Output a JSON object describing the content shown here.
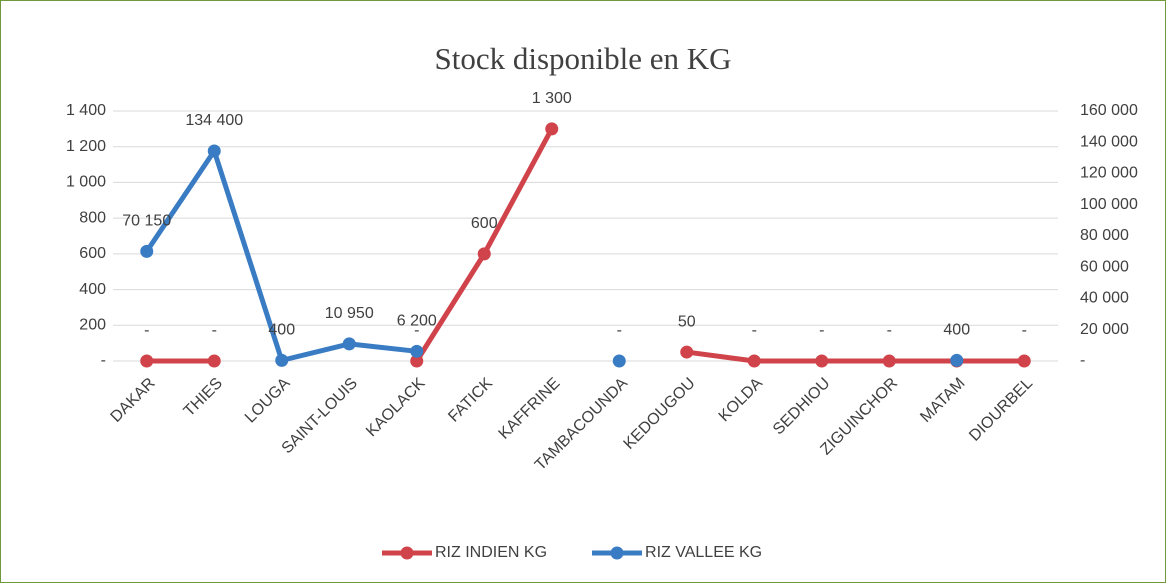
{
  "chart_data": {
    "type": "line",
    "title": "Stock disponible en KG",
    "categories": [
      "DAKAR",
      "THIES",
      "LOUGA",
      "SAINT-LOUIS",
      "KAOLACK",
      "FATICK",
      "KAFFRINE",
      "TAMBACOUNDA",
      "KEDOUGOU",
      "KOLDA",
      "SEDHIOU",
      "ZIGUINCHOR",
      "MATAM",
      "DIOURBEL"
    ],
    "series": [
      {
        "name": "RIZ INDIEN KG",
        "color": "#d1434b",
        "axis": "y",
        "values": [
          0,
          0,
          null,
          null,
          0,
          600,
          1300,
          null,
          50,
          0,
          0,
          0,
          0,
          0
        ],
        "value_labels": [
          "-",
          "-",
          null,
          null,
          "-",
          "600",
          "1 300",
          null,
          "50",
          "-",
          "-",
          "-",
          null,
          "-"
        ]
      },
      {
        "name": "RIZ VALLEE KG",
        "color": "#3a7cc3",
        "axis": "y2",
        "values": [
          70150,
          134400,
          400,
          10950,
          6200,
          null,
          null,
          0,
          null,
          null,
          null,
          null,
          400,
          null
        ],
        "value_labels": [
          "70 150",
          "134 400",
          "400",
          "10 950",
          "6 200",
          null,
          null,
          "-",
          null,
          null,
          null,
          null,
          "400",
          null
        ]
      }
    ],
    "ylim": [
      0,
      1400
    ],
    "yticks": [
      {
        "value": 0,
        "label": "-"
      },
      200,
      400,
      600,
      800,
      {
        "value": 1000,
        "label": "1 000"
      },
      {
        "value": 1200,
        "label": "1 200"
      },
      {
        "value": 1400,
        "label": "1 400"
      }
    ],
    "y2lim": [
      0,
      160000
    ],
    "y2ticks": [
      {
        "value": 0,
        "label": "-"
      },
      {
        "value": 20000,
        "label": "20 000"
      },
      {
        "value": 40000,
        "label": "40 000"
      },
      {
        "value": 60000,
        "label": "60 000"
      },
      {
        "value": 80000,
        "label": "80 000"
      },
      {
        "value": 100000,
        "label": "100 000"
      },
      {
        "value": 120000,
        "label": "120 000"
      },
      {
        "value": 140000,
        "label": "140 000"
      },
      {
        "value": 160000,
        "label": "160 000"
      }
    ],
    "grid": true,
    "legend": "bottom"
  }
}
